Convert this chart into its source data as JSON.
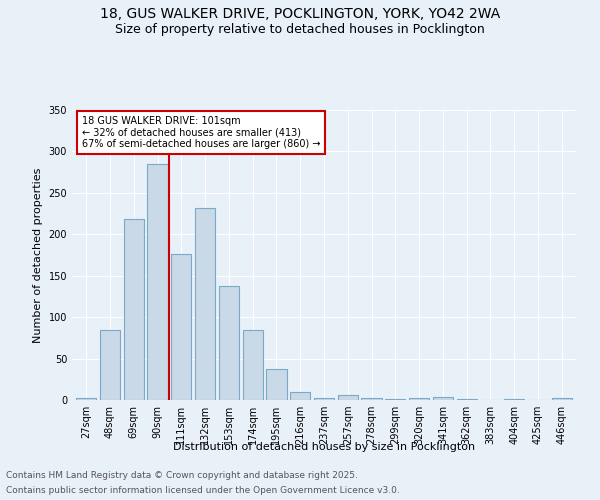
{
  "title1": "18, GUS WALKER DRIVE, POCKLINGTON, YORK, YO42 2WA",
  "title2": "Size of property relative to detached houses in Pocklington",
  "xlabel": "Distribution of detached houses by size in Pocklington",
  "ylabel": "Number of detached properties",
  "categories": [
    "27sqm",
    "48sqm",
    "69sqm",
    "90sqm",
    "111sqm",
    "132sqm",
    "153sqm",
    "174sqm",
    "195sqm",
    "216sqm",
    "237sqm",
    "257sqm",
    "278sqm",
    "299sqm",
    "320sqm",
    "341sqm",
    "362sqm",
    "383sqm",
    "404sqm",
    "425sqm",
    "446sqm"
  ],
  "values": [
    2,
    85,
    218,
    285,
    176,
    232,
    137,
    85,
    38,
    10,
    2,
    6,
    2,
    1,
    3,
    4,
    1,
    0,
    1,
    0,
    2
  ],
  "bar_color": "#c9d9e8",
  "bar_edge_color": "#7aaac8",
  "vline_x": 3.5,
  "vline_color": "#cc0000",
  "annotation_line1": "18 GUS WALKER DRIVE: 101sqm",
  "annotation_line2": "← 32% of detached houses are smaller (413)",
  "annotation_line3": "67% of semi-detached houses are larger (860) →",
  "annotation_box_color": "#ffffff",
  "annotation_box_edge": "#cc0000",
  "ylim": [
    0,
    350
  ],
  "yticks": [
    0,
    50,
    100,
    150,
    200,
    250,
    300,
    350
  ],
  "footer1": "Contains HM Land Registry data © Crown copyright and database right 2025.",
  "footer2": "Contains public sector information licensed under the Open Government Licence v3.0.",
  "bg_color": "#e8f0f8",
  "plot_bg_color": "#e8f0f8",
  "title_fontsize": 10,
  "subtitle_fontsize": 9,
  "label_fontsize": 8,
  "tick_fontsize": 7,
  "annotation_fontsize": 7,
  "footer_fontsize": 6.5
}
